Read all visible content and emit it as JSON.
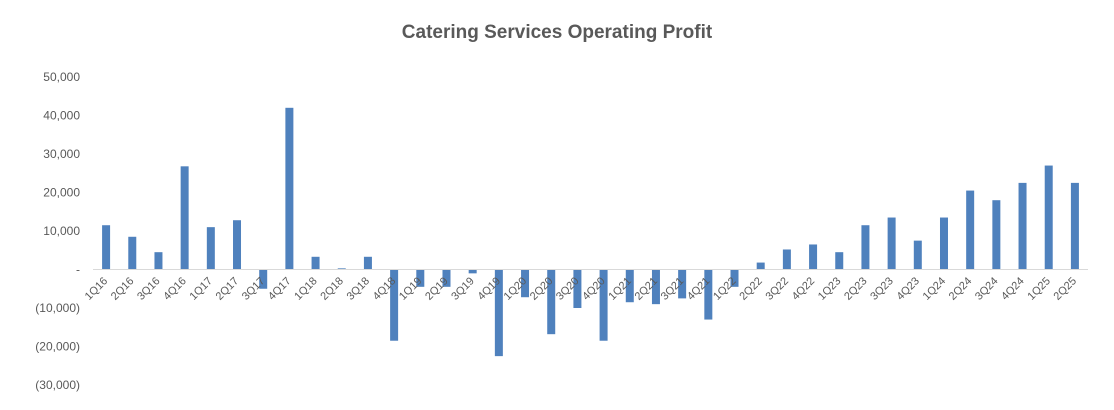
{
  "chart_data": {
    "type": "bar",
    "title": "Catering Services Operating Profit",
    "xlabel": "",
    "ylabel": "",
    "ylim": [
      -30000,
      50000
    ],
    "y_ticks": [
      50000,
      40000,
      30000,
      20000,
      10000,
      0,
      -10000,
      -20000,
      -30000
    ],
    "y_tick_labels": [
      "50,000",
      "40,000",
      "30,000",
      "20,000",
      "10,000",
      "-",
      "(10,000)",
      "(20,000)",
      "(30,000)"
    ],
    "grid": false,
    "legend": "none",
    "bar_color": "#4f81bd",
    "categories": [
      "1Q16",
      "2Q16",
      "3Q16",
      "4Q16",
      "1Q17",
      "2Q17",
      "3Q17",
      "4Q17",
      "1Q18",
      "2Q18",
      "3Q18",
      "4Q18",
      "1Q19",
      "2Q19",
      "3Q19",
      "4Q19",
      "1Q20",
      "2Q20",
      "3Q20",
      "4Q20",
      "1Q21",
      "2Q21",
      "3Q21",
      "4Q21",
      "1Q22",
      "2Q22",
      "3Q22",
      "4Q22",
      "1Q23",
      "2Q23",
      "3Q23",
      "4Q23",
      "1Q24",
      "2Q24",
      "3Q24",
      "4Q24",
      "1Q25",
      "2Q25"
    ],
    "values": [
      11500,
      8500,
      4500,
      26800,
      11000,
      12800,
      -5000,
      42000,
      3300,
      300,
      3300,
      -18500,
      -4500,
      -4500,
      -1000,
      -22500,
      -7200,
      -16800,
      -10000,
      -18500,
      -8500,
      -9000,
      -7500,
      -13000,
      -4500,
      1800,
      5200,
      6500,
      4500,
      11500,
      13500,
      7500,
      13500,
      20500,
      18000,
      22500,
      27000,
      22500
    ]
  }
}
